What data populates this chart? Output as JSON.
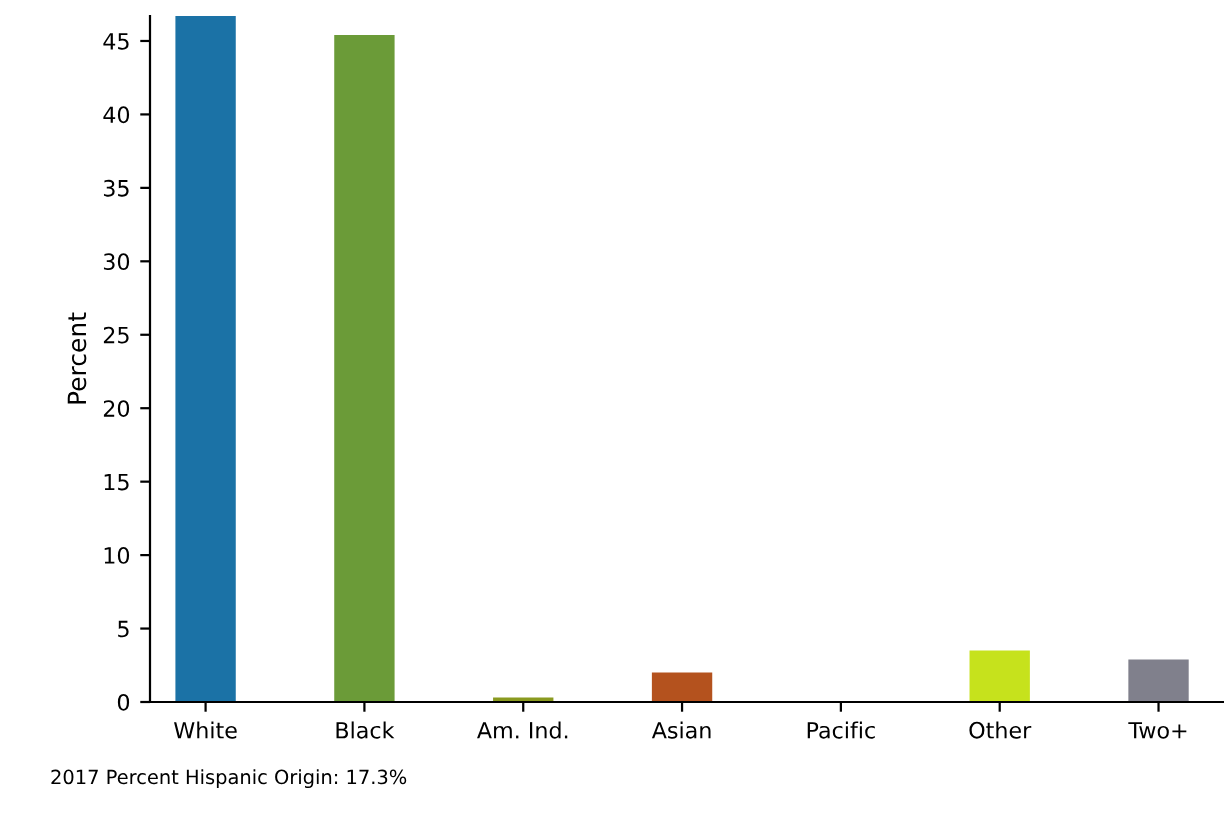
{
  "chart_data": {
    "type": "bar",
    "ylabel": "Percent",
    "categories": [
      "White",
      "Black",
      "Am. Ind.",
      "Asian",
      "Pacific",
      "Other",
      "Two+"
    ],
    "values": [
      46.7,
      45.4,
      0.3,
      2.0,
      null,
      3.5,
      2.9
    ],
    "colors": [
      "#1b72a6",
      "#6b9b38",
      "#8a9a20",
      "#b4521e",
      "#5a7fb0",
      "#c6e21c",
      "#80808c"
    ],
    "ylim": [
      0,
      46.7
    ],
    "yticks": [
      0,
      5,
      10,
      15,
      20,
      25,
      30,
      35,
      40,
      45
    ],
    "grid": false,
    "annotations": [
      "2017 Percent Hispanic Origin: 17.3%"
    ]
  }
}
